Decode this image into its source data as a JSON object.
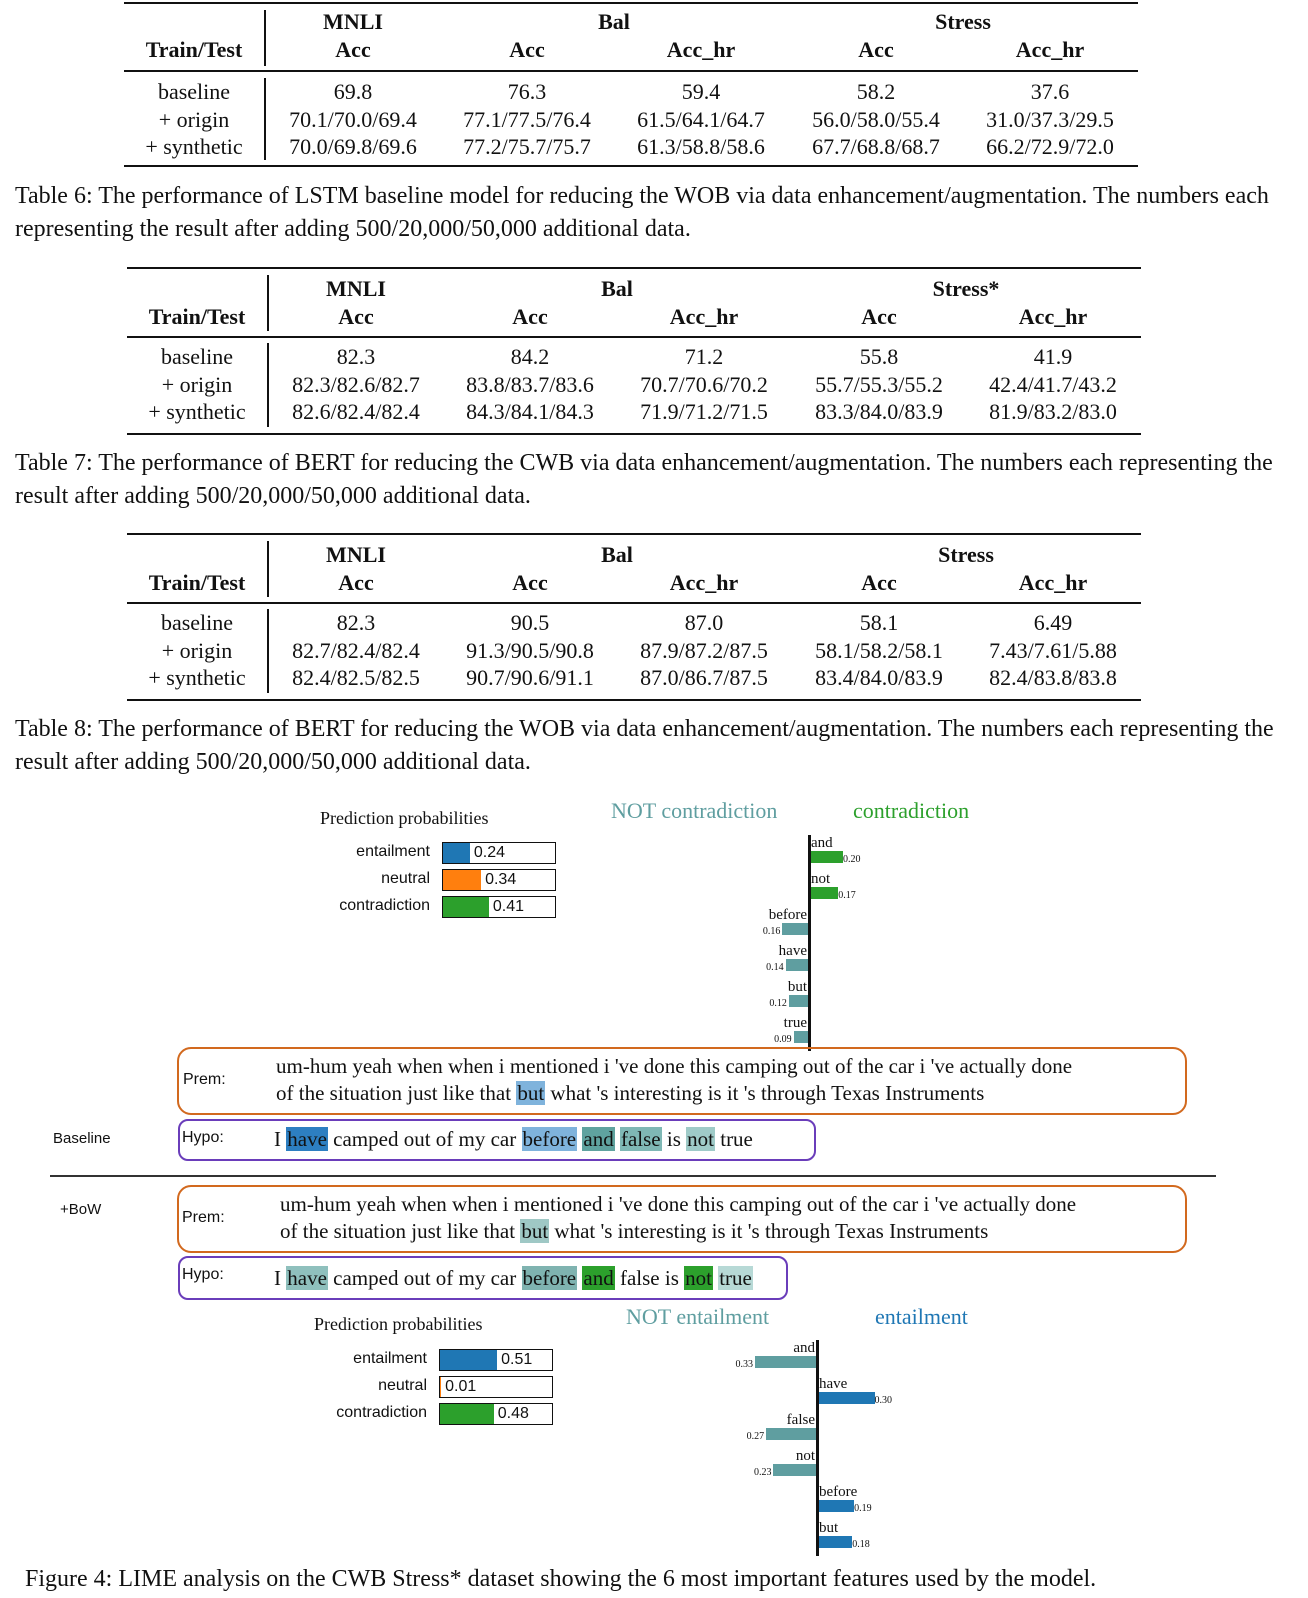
{
  "table6": {
    "h_train_test": "Train/Test",
    "h_mnli": "MNLI",
    "h_bal": "Bal",
    "h_stress": "Stress",
    "h_acc1": "Acc",
    "h_acc2": "Acc",
    "h_acchr2": "Acc_hr",
    "h_acc3": "Acc",
    "h_acchr3": "Acc_hr",
    "rows": [
      {
        "label": "baseline",
        "c": [
          "69.8",
          "76.3",
          "59.4",
          "58.2",
          "37.6"
        ]
      },
      {
        "label": "+ origin",
        "c": [
          "70.1/70.0/69.4",
          "77.1/77.5/76.4",
          "61.5/64.1/64.7",
          "56.0/58.0/55.4",
          "31.0/37.3/29.5"
        ]
      },
      {
        "label": "+ synthetic",
        "c": [
          "70.0/69.8/69.6",
          "77.2/75.7/75.7",
          "61.3/58.8/58.6",
          "67.7/68.8/68.7",
          "66.2/72.9/72.0"
        ]
      }
    ],
    "caption": "Table 6: The performance of LSTM baseline model for reducing the WOB via data enhancement/augmentation. The numbers each representing the result after adding 500/20,000/50,000 additional data."
  },
  "table7": {
    "h_train_test": "Train/Test",
    "h_mnli": "MNLI",
    "h_bal": "Bal",
    "h_stress": "Stress*",
    "h_acc1": "Acc",
    "h_acc2": "Acc",
    "h_acchr2": "Acc_hr",
    "h_acc3": "Acc",
    "h_acchr3": "Acc_hr",
    "rows": [
      {
        "label": "baseline",
        "c": [
          "82.3",
          "84.2",
          "71.2",
          "55.8",
          "41.9"
        ]
      },
      {
        "label": "+ origin",
        "c": [
          "82.3/82.6/82.7",
          "83.8/83.7/83.6",
          "70.7/70.6/70.2",
          "55.7/55.3/55.2",
          "42.4/41.7/43.2"
        ]
      },
      {
        "label": "+ synthetic",
        "c": [
          "82.6/82.4/82.4",
          "84.3/84.1/84.3",
          "71.9/71.2/71.5",
          "83.3/84.0/83.9",
          "81.9/83.2/83.0"
        ]
      }
    ],
    "caption": "Table 7: The performance of BERT for reducing the CWB via data enhancement/augmentation. The numbers each representing the result after adding 500/20,000/50,000 additional data."
  },
  "table8": {
    "h_train_test": "Train/Test",
    "h_mnli": "MNLI",
    "h_bal": "Bal",
    "h_stress": "Stress",
    "h_acc1": "Acc",
    "h_acc2": "Acc",
    "h_acchr2": "Acc_hr",
    "h_acc3": "Acc",
    "h_acchr3": "Acc_hr",
    "rows": [
      {
        "label": "baseline",
        "c": [
          "82.3",
          "90.5",
          "87.0",
          "58.1",
          "6.49"
        ]
      },
      {
        "label": "+ origin",
        "c": [
          "82.7/82.4/82.4",
          "91.3/90.5/90.8",
          "87.9/87.2/87.5",
          "58.1/58.2/58.1",
          "7.43/7.61/5.88"
        ]
      },
      {
        "label": "+ synthetic",
        "c": [
          "82.4/82.5/82.5",
          "90.7/90.6/91.1",
          "87.0/86.7/87.5",
          "83.4/84.0/83.9",
          "82.4/83.8/83.8"
        ]
      }
    ],
    "caption": "Table 8: The performance of BERT for reducing the WOB via data enhancement/augmentation. The numbers each representing the result after adding 500/20,000/50,000 additional data."
  },
  "figure": {
    "baseline": {
      "side_label": "Baseline",
      "pp_title": "Prediction probabilities",
      "probs": [
        {
          "label": "entailment",
          "value": "0.24",
          "fraction": 0.24,
          "color": "#1f77b4"
        },
        {
          "label": "neutral",
          "value": "0.34",
          "fraction": 0.34,
          "color": "#ff7f0e"
        },
        {
          "label": "contradiction",
          "value": "0.41",
          "fraction": 0.41,
          "color": "#2ca02c"
        }
      ],
      "class_not": "NOT contradiction",
      "class_yes": "contradiction",
      "features": [
        {
          "word": "and",
          "weight": "0.20",
          "value": 0.2,
          "side": "pos"
        },
        {
          "word": "not",
          "weight": "0.17",
          "value": 0.17,
          "side": "pos"
        },
        {
          "word": "before",
          "weight": "0.16",
          "value": 0.16,
          "side": "neg"
        },
        {
          "word": "have",
          "weight": "0.14",
          "value": 0.14,
          "side": "neg"
        },
        {
          "word": "but",
          "weight": "0.12",
          "value": 0.12,
          "side": "neg"
        },
        {
          "word": "true",
          "weight": "0.09",
          "value": 0.09,
          "side": "neg"
        }
      ],
      "prem_label": "Prem:",
      "prem_line1": "um-hum yeah when when i mentioned i 've done this camping out of the car i 've actually done",
      "prem_line2_a": "of the situation just like that ",
      "prem_line2_hl": "but",
      "prem_line2_b": " what 's interesting is it 's through Texas Instruments",
      "hypo_label": "Hypo:",
      "hypo_tokens": [
        {
          "t": "I",
          "bg": ""
        },
        {
          "t": "have",
          "bg": "#2d7fc1"
        },
        {
          "t": "camped out of my car",
          "bg": ""
        },
        {
          "t": "before",
          "bg": "#7fb3dc"
        },
        {
          "t": "and",
          "bg": "#5fa39f"
        },
        {
          "t": "false",
          "bg": "#7fb8b5"
        },
        {
          "t": "is",
          "bg": ""
        },
        {
          "t": "not",
          "bg": "#9fcbc8"
        },
        {
          "t": "true",
          "bg": ""
        }
      ]
    },
    "bow": {
      "side_label": "+BoW",
      "pp_title": "Prediction probabilities",
      "probs": [
        {
          "label": "entailment",
          "value": "0.51",
          "fraction": 0.51,
          "color": "#1f77b4"
        },
        {
          "label": "neutral",
          "value": "0.01",
          "fraction": 0.01,
          "color": "#ff7f0e"
        },
        {
          "label": "contradiction",
          "value": "0.48",
          "fraction": 0.48,
          "color": "#2ca02c"
        }
      ],
      "class_not": "NOT entailment",
      "class_yes": "entailment",
      "features": [
        {
          "word": "and",
          "weight": "0.33",
          "value": 0.33,
          "side": "neg"
        },
        {
          "word": "have",
          "weight": "0.30",
          "value": 0.3,
          "side": "pos"
        },
        {
          "word": "false",
          "weight": "0.27",
          "value": 0.27,
          "side": "neg"
        },
        {
          "word": "not",
          "weight": "0.23",
          "value": 0.23,
          "side": "neg"
        },
        {
          "word": "before",
          "weight": "0.19",
          "value": 0.19,
          "side": "pos"
        },
        {
          "word": "but",
          "weight": "0.18",
          "value": 0.18,
          "side": "pos"
        }
      ],
      "prem_label": "Prem:",
      "prem_line1": "um-hum yeah when when i mentioned i 've done this camping out of the car i 've actually done",
      "prem_line2_a": "of the situation just like that ",
      "prem_line2_hl": "but",
      "prem_line2_b": " what 's interesting is it 's through Texas Instruments",
      "hypo_label": "Hypo:",
      "hypo_tokens": [
        {
          "t": "I",
          "bg": ""
        },
        {
          "t": "have",
          "bg": "#8fc0bd"
        },
        {
          "t": "camped out of my car",
          "bg": ""
        },
        {
          "t": "before",
          "bg": "#7fb3b0"
        },
        {
          "t": "and",
          "bg": "#2ca02c"
        },
        {
          "t": "false is",
          "bg": ""
        },
        {
          "t": "not",
          "bg": "#2ca02c"
        },
        {
          "t": "true",
          "bg": "#b7d9d6"
        }
      ]
    },
    "caption": "Figure 4: LIME analysis on the CWB Stress* dataset showing the 6 most important features used by the model."
  }
}
